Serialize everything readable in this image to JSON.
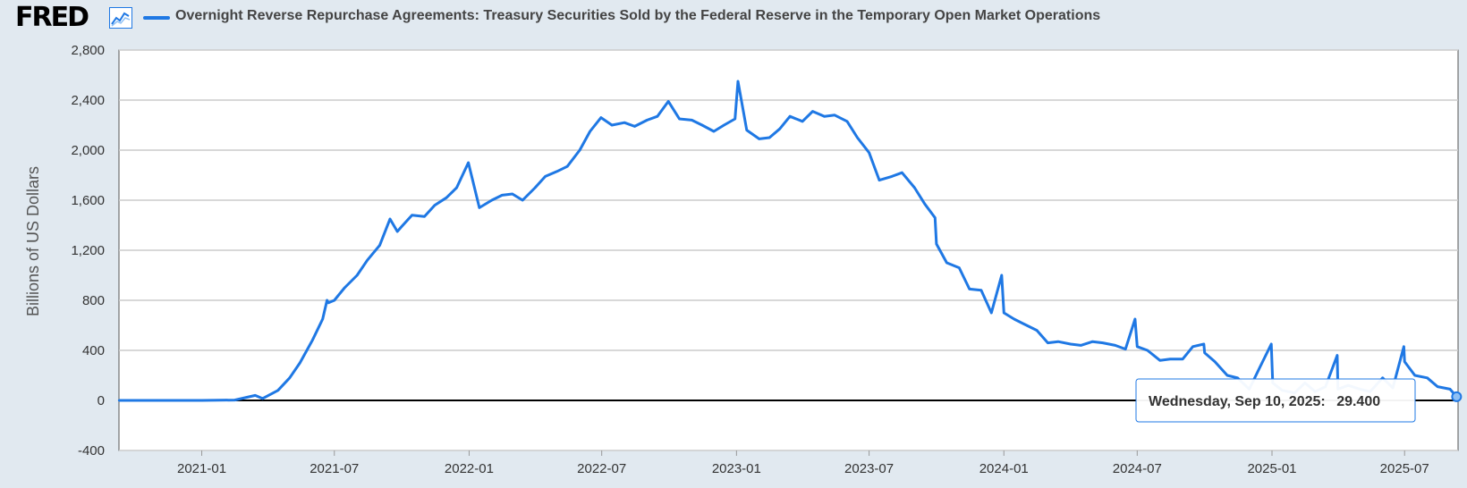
{
  "header": {
    "logo": "FRED",
    "logo_icon": "line-chart-icon",
    "title": "Overnight Reverse Repurchase Agreements: Treasury Securities Sold by the Federal Reserve in the Temporary Open Market Operations"
  },
  "tooltip": {
    "date_label": "Wednesday, Sep 10, 2025:",
    "value_label": "29.400"
  },
  "colors": {
    "series": "#1f78e4",
    "background": "#e1e9f0",
    "plot": "#ffffff",
    "grid": "#cccccc"
  },
  "chart_data": {
    "type": "line",
    "title": "Overnight Reverse Repurchase Agreements: Treasury Securities Sold by the Federal Reserve in the Temporary Open Market Operations",
    "xlabel": "",
    "ylabel": "Billions of US Dollars",
    "ylim": [
      -400,
      2800
    ],
    "xlim": [
      "2020-09-10",
      "2025-09-12"
    ],
    "yticks": [
      -400,
      0,
      400,
      800,
      1200,
      1600,
      2000,
      2400,
      2800
    ],
    "ytick_labels": [
      "-400",
      "0",
      "400",
      "800",
      "1,200",
      "1,600",
      "2,000",
      "2,400",
      "2,800"
    ],
    "xticks": [
      "2021-01-01",
      "2021-07-01",
      "2022-01-01",
      "2022-07-01",
      "2023-01-01",
      "2023-07-01",
      "2024-01-01",
      "2024-07-01",
      "2025-01-01",
      "2025-07-01"
    ],
    "xtick_labels": [
      "2021-01",
      "2021-07",
      "2022-01",
      "2022-07",
      "2023-01",
      "2023-07",
      "2024-01",
      "2024-07",
      "2025-01",
      "2025-07"
    ],
    "grid": true,
    "legend": "top-left",
    "series": [
      {
        "name": "Overnight Reverse Repurchase Agreements: Treasury Securities Sold by the Federal Reserve in the Temporary Open Market Operations",
        "x": [
          "2020-09-10",
          "2020-11-01",
          "2021-01-01",
          "2021-02-15",
          "2021-03-15",
          "2021-03-25",
          "2021-04-15",
          "2021-05-01",
          "2021-05-15",
          "2021-06-01",
          "2021-06-15",
          "2021-06-21",
          "2021-06-23",
          "2021-07-01",
          "2021-07-15",
          "2021-08-01",
          "2021-08-15",
          "2021-09-01",
          "2021-09-15",
          "2021-09-25",
          "2021-10-01",
          "2021-10-15",
          "2021-11-01",
          "2021-11-15",
          "2021-12-01",
          "2021-12-15",
          "2021-12-31",
          "2022-01-15",
          "2022-02-01",
          "2022-02-15",
          "2022-03-01",
          "2022-03-15",
          "2022-04-01",
          "2022-04-15",
          "2022-05-01",
          "2022-05-15",
          "2022-06-01",
          "2022-06-15",
          "2022-06-30",
          "2022-07-15",
          "2022-08-01",
          "2022-08-15",
          "2022-09-01",
          "2022-09-15",
          "2022-09-30",
          "2022-10-15",
          "2022-11-01",
          "2022-11-15",
          "2022-12-01",
          "2022-12-15",
          "2022-12-30",
          "2023-01-03",
          "2023-01-15",
          "2023-02-01",
          "2023-02-15",
          "2023-03-01",
          "2023-03-15",
          "2023-04-01",
          "2023-04-15",
          "2023-05-01",
          "2023-05-15",
          "2023-06-01",
          "2023-06-15",
          "2023-07-01",
          "2023-07-15",
          "2023-08-01",
          "2023-08-15",
          "2023-09-01",
          "2023-09-15",
          "2023-09-29",
          "2023-10-01",
          "2023-10-15",
          "2023-11-01",
          "2023-11-15",
          "2023-12-01",
          "2023-12-15",
          "2023-12-29",
          "2024-01-01",
          "2024-01-15",
          "2024-02-01",
          "2024-02-15",
          "2024-03-01",
          "2024-03-15",
          "2024-04-01",
          "2024-04-15",
          "2024-05-01",
          "2024-05-15",
          "2024-06-01",
          "2024-06-15",
          "2024-06-28",
          "2024-07-01",
          "2024-07-15",
          "2024-08-01",
          "2024-08-15",
          "2024-09-01",
          "2024-09-15",
          "2024-09-30",
          "2024-10-01",
          "2024-10-15",
          "2024-11-01",
          "2024-11-15",
          "2024-12-01",
          "2024-12-15",
          "2024-12-31",
          "2025-01-02",
          "2025-01-15",
          "2025-02-01",
          "2025-02-15",
          "2025-03-01",
          "2025-03-15",
          "2025-03-31",
          "2025-04-01",
          "2025-04-15",
          "2025-05-01",
          "2025-05-15",
          "2025-06-01",
          "2025-06-15",
          "2025-06-30",
          "2025-07-01",
          "2025-07-15",
          "2025-08-01",
          "2025-08-15",
          "2025-09-01",
          "2025-09-10"
        ],
        "values": [
          0,
          0,
          0,
          3,
          40,
          15,
          80,
          180,
          300,
          480,
          650,
          800,
          780,
          800,
          900,
          1000,
          1120,
          1240,
          1450,
          1350,
          1390,
          1480,
          1470,
          1560,
          1620,
          1700,
          1900,
          1540,
          1600,
          1640,
          1650,
          1600,
          1700,
          1790,
          1830,
          1870,
          2000,
          2150,
          2260,
          2200,
          2220,
          2190,
          2240,
          2270,
          2390,
          2250,
          2240,
          2200,
          2150,
          2200,
          2250,
          2550,
          2160,
          2090,
          2100,
          2170,
          2270,
          2230,
          2310,
          2270,
          2280,
          2230,
          2100,
          1980,
          1760,
          1790,
          1820,
          1700,
          1570,
          1460,
          1250,
          1100,
          1060,
          890,
          880,
          700,
          1000,
          700,
          650,
          600,
          560,
          460,
          470,
          450,
          440,
          470,
          460,
          440,
          410,
          650,
          430,
          400,
          320,
          330,
          330,
          430,
          450,
          380,
          310,
          200,
          180,
          90,
          260,
          450,
          140,
          80,
          60,
          140,
          70,
          110,
          360,
          90,
          120,
          90,
          70,
          180,
          100,
          430,
          310,
          200,
          180,
          110,
          90,
          29.4
        ]
      }
    ]
  }
}
